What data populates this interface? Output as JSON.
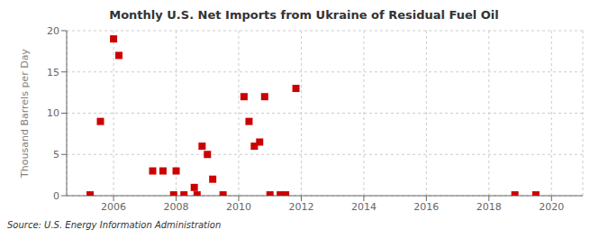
{
  "chart_data": {
    "type": "scatter",
    "title": "Monthly U.S. Net Imports from Ukraine of Residual Fuel Oil",
    "y_label": "Thousand Barrels per Day",
    "annotations": [
      "Source: U.S. Energy Information Administration"
    ],
    "color": "#cc0000",
    "marker": "square",
    "grid": true,
    "xlim": [
      2004.5,
      2021.0
    ],
    "ylim": [
      0,
      20
    ],
    "xticks": [
      2006,
      2008,
      2010,
      2012,
      2014,
      2016,
      2018,
      2020
    ],
    "yticks": [
      0,
      5,
      10,
      15,
      20
    ],
    "x": [
      2005.25,
      2005.58,
      2006.0,
      2006.17,
      2007.25,
      2007.58,
      2007.92,
      2008.0,
      2008.25,
      2008.58,
      2008.67,
      2008.83,
      2009.0,
      2009.17,
      2009.5,
      2010.17,
      2010.33,
      2010.5,
      2010.67,
      2010.83,
      2011.0,
      2011.33,
      2011.5,
      2011.83,
      2018.83,
      2019.5
    ],
    "values": [
      0.1,
      9.0,
      19.0,
      17.0,
      3.0,
      3.0,
      0.1,
      3.0,
      0.1,
      1.0,
      0.1,
      6.0,
      5.0,
      2.0,
      0.1,
      12.0,
      9.0,
      6.0,
      6.5,
      12.0,
      0.1,
      0.1,
      0.1,
      13.0,
      0.1,
      0.1
    ]
  }
}
